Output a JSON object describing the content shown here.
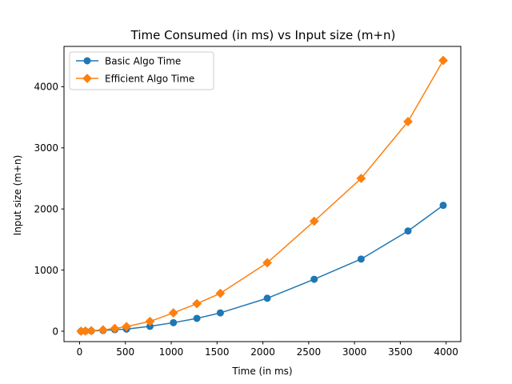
{
  "chart_data": {
    "type": "line",
    "title": "Time Consumed (in ms) vs Input size (m+n)",
    "xlabel": "Time (in ms)",
    "ylabel": "Input size (m+n)",
    "xlim": [
      -170,
      4160
    ],
    "ylim": [
      -170,
      4660
    ],
    "x_ticks": [
      0,
      500,
      1000,
      1500,
      2000,
      2500,
      3000,
      3500,
      4000
    ],
    "y_ticks": [
      0,
      1000,
      2000,
      3000,
      4000
    ],
    "grid": false,
    "legend_position": "top-left",
    "x": [
      16,
      64,
      128,
      256,
      384,
      512,
      768,
      1024,
      1280,
      1536,
      2048,
      2560,
      3072,
      3584,
      3968
    ],
    "series": [
      {
        "name": "Basic Algo Time",
        "color": "#1f77b4",
        "marker": "circle",
        "values": [
          0,
          2,
          5,
          12,
          25,
          35,
          80,
          140,
          210,
          300,
          540,
          850,
          1180,
          1640,
          2060
        ]
      },
      {
        "name": "Efficient Algo Time",
        "color": "#ff7f0e",
        "marker": "diamond",
        "values": [
          0,
          3,
          8,
          22,
          45,
          75,
          160,
          300,
          450,
          620,
          1120,
          1800,
          2500,
          3430,
          4430
        ]
      }
    ]
  }
}
